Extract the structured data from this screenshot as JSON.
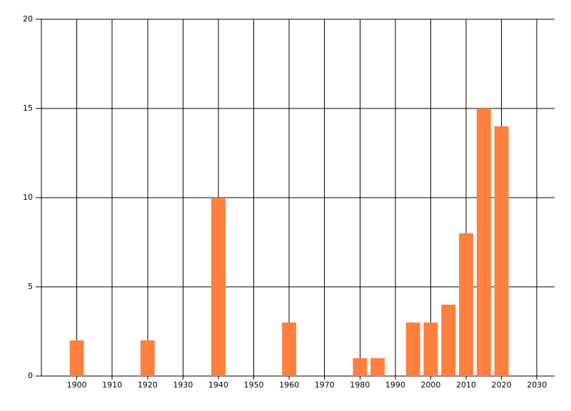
{
  "chart_data": {
    "type": "bar",
    "x": [
      1900,
      1920,
      1940,
      1960,
      1980,
      1985,
      1995,
      2000,
      2005,
      2010,
      2015,
      2020
    ],
    "values": [
      2,
      2,
      10,
      3,
      1,
      1,
      3,
      3,
      4,
      8,
      15,
      14
    ],
    "color": "#ff7f3f",
    "xlim": [
      1890,
      2035
    ],
    "xticks": [
      1900,
      1910,
      1920,
      1930,
      1940,
      1950,
      1960,
      1970,
      1980,
      1990,
      2000,
      2010,
      2020,
      2030
    ],
    "ylim": [
      0,
      20
    ],
    "yticks": [
      0,
      5,
      10,
      15,
      20
    ],
    "grid": true
  }
}
